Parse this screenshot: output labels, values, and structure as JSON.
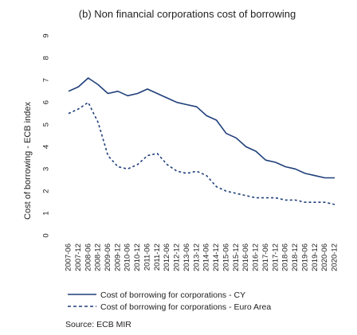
{
  "chart_data": {
    "type": "line",
    "title": "(b) Non financial corporations cost of borrowing",
    "ylabel": "Cost of borrowing - ECB index",
    "xlabel": "",
    "ylim": [
      0,
      9
    ],
    "yticks": [
      0,
      1,
      2,
      3,
      4,
      5,
      6,
      7,
      8,
      9
    ],
    "x": [
      "2007-06",
      "2007-12",
      "2008-06",
      "2008-12",
      "2009-06",
      "2009-12",
      "2010-06",
      "2010-12",
      "2011-06",
      "2011-12",
      "2012-06",
      "2012-12",
      "2013-06",
      "2013-12",
      "2014-06",
      "2014-12",
      "2015-06",
      "2015-12",
      "2016-06",
      "2016-12",
      "2017-06",
      "2017-12",
      "2018-06",
      "2018-12",
      "2019-06",
      "2019-12",
      "2020-06",
      "2020-12"
    ],
    "series": [
      {
        "name": "Cost of borrowing for corporations - CY",
        "style": "solid",
        "color": "#1f3f7a",
        "values": [
          6.5,
          6.7,
          7.1,
          6.8,
          6.4,
          6.5,
          6.3,
          6.4,
          6.6,
          6.4,
          6.2,
          6.0,
          5.9,
          5.8,
          5.4,
          5.2,
          4.6,
          4.4,
          4.0,
          3.8,
          3.4,
          3.3,
          3.1,
          3.0,
          2.8,
          2.7,
          2.6,
          2.6
        ]
      },
      {
        "name": "Cost of borrowing for corporations - Euro Area",
        "style": "dashed",
        "color": "#1f3f7a",
        "values": [
          5.5,
          5.7,
          6.0,
          5.1,
          3.6,
          3.1,
          3.0,
          3.2,
          3.6,
          3.7,
          3.2,
          2.9,
          2.8,
          2.9,
          2.7,
          2.2,
          2.0,
          1.9,
          1.8,
          1.7,
          1.7,
          1.7,
          1.6,
          1.6,
          1.5,
          1.5,
          1.5,
          1.4
        ]
      }
    ],
    "legend_placement": "bottom",
    "grid": false
  },
  "source_text": "Source: ECB MIR"
}
